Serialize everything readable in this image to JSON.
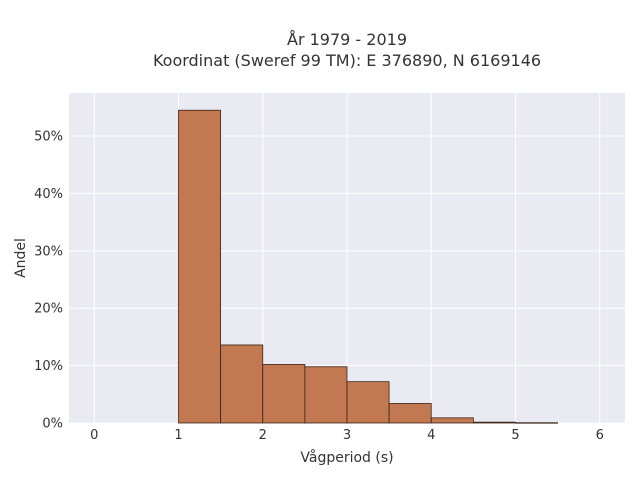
{
  "chart_data": {
    "type": "bar",
    "title_line1": "År 1979 - 2019",
    "title_line2": "Koordinat (Sweref 99 TM): E 376890, N 6169146",
    "xlabel": "Vågperiod (s)",
    "ylabel": "Andel",
    "xlim": [
      -0.3,
      6.3
    ],
    "ylim": [
      0,
      57.5
    ],
    "x_ticks": [
      0,
      1,
      2,
      3,
      4,
      5,
      6
    ],
    "x_tick_labels": [
      "0",
      "1",
      "2",
      "3",
      "4",
      "5",
      "6"
    ],
    "y_ticks": [
      0,
      10,
      20,
      30,
      40,
      50
    ],
    "y_tick_labels": [
      "0%",
      "10%",
      "20%",
      "30%",
      "40%",
      "50%"
    ],
    "bin_width": 0.5,
    "bins": [
      {
        "start": 1.0,
        "value": 54.5
      },
      {
        "start": 1.5,
        "value": 13.6
      },
      {
        "start": 2.0,
        "value": 10.2
      },
      {
        "start": 2.5,
        "value": 9.8
      },
      {
        "start": 3.0,
        "value": 7.2
      },
      {
        "start": 3.5,
        "value": 3.4
      },
      {
        "start": 4.0,
        "value": 0.9
      },
      {
        "start": 4.5,
        "value": 0.15
      },
      {
        "start": 5.0,
        "value": 0.05
      }
    ],
    "grid": true,
    "legend": false,
    "bar_color": "#C27850",
    "bar_edge_color": "#3A2418",
    "plot_background": "#EAEAF2",
    "grid_color": "#FFFFFF"
  }
}
